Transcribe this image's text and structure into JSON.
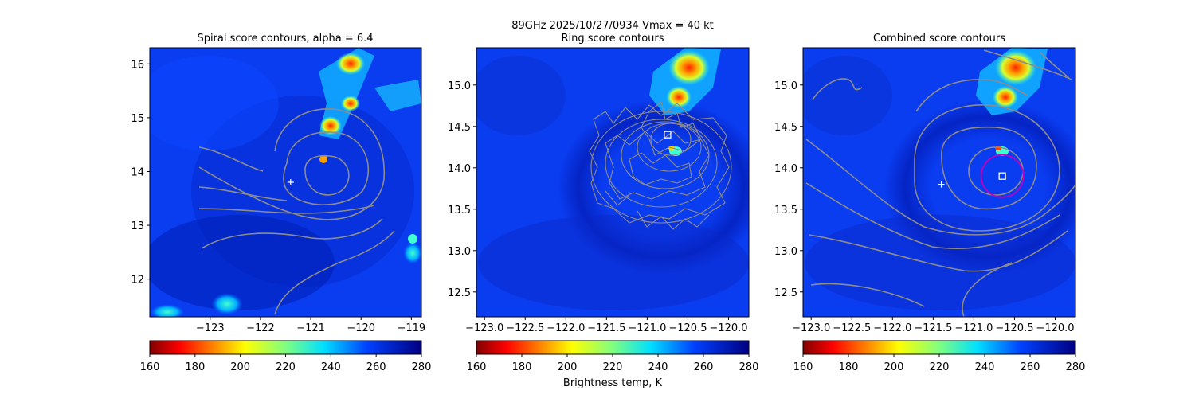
{
  "suptitle": "89GHz  2025/10/27/0934    Vmax = 40 kt",
  "colorbar_label": "Brightness temp, K",
  "colormap": "jet",
  "colorbar": {
    "min": 160,
    "max": 280,
    "ticks": [
      "160",
      "180",
      "200",
      "220",
      "240",
      "260",
      "280"
    ]
  },
  "chart_data": [
    {
      "type": "heatmap",
      "title": "Spiral score contours, alpha =  6.4",
      "xlim": [
        -124.2,
        -118.8
      ],
      "ylim": [
        11.3,
        16.3
      ],
      "xticks": [
        -123,
        -122,
        -121,
        -120,
        -119
      ],
      "xtick_labels": [
        "−123",
        "−122",
        "−121",
        "−120",
        "−119"
      ],
      "yticks": [
        12,
        13,
        14,
        15,
        16
      ],
      "ytick_labels": [
        "12",
        "13",
        "14",
        "15",
        "16"
      ],
      "markers": [
        {
          "kind": "plus",
          "x": -121.4,
          "y": 13.8
        }
      ]
    },
    {
      "type": "heatmap",
      "title": "Ring score contours",
      "xlim": [
        -123.1,
        -119.75
      ],
      "ylim": [
        12.2,
        15.45
      ],
      "xticks": [
        -123.0,
        -122.5,
        -122.0,
        -121.5,
        -121.0,
        -120.5,
        -120.0
      ],
      "xtick_labels": [
        "−123.0",
        "−122.5",
        "−122.0",
        "−121.5",
        "−121.0",
        "−120.5",
        "−120.0"
      ],
      "yticks": [
        12.5,
        13.0,
        13.5,
        14.0,
        14.5,
        15.0
      ],
      "ytick_labels": [
        "12.5",
        "13.0",
        "13.5",
        "14.0",
        "14.5",
        "15.0"
      ],
      "markers": [
        {
          "kind": "square",
          "x": -120.75,
          "y": 14.4
        }
      ]
    },
    {
      "type": "heatmap",
      "title": "Combined score contours",
      "xlim": [
        -123.1,
        -119.75
      ],
      "ylim": [
        12.2,
        15.45
      ],
      "xticks": [
        -123.0,
        -122.5,
        -122.0,
        -121.5,
        -121.0,
        -120.5,
        -120.0
      ],
      "xtick_labels": [
        "−123.0",
        "−122.5",
        "−122.0",
        "−121.5",
        "−121.0",
        "−120.5",
        "−120.0"
      ],
      "yticks": [
        12.5,
        13.0,
        13.5,
        14.0,
        14.5,
        15.0
      ],
      "ytick_labels": [
        "12.5",
        "13.0",
        "13.5",
        "14.0",
        "14.5",
        "15.0"
      ],
      "markers": [
        {
          "kind": "plus",
          "x": -121.4,
          "y": 13.8
        },
        {
          "kind": "square",
          "x": -120.65,
          "y": 13.9
        },
        {
          "kind": "circle",
          "x": -120.65,
          "y": 13.9,
          "radius_deg": 0.26,
          "color": "#c000c0"
        }
      ]
    }
  ]
}
